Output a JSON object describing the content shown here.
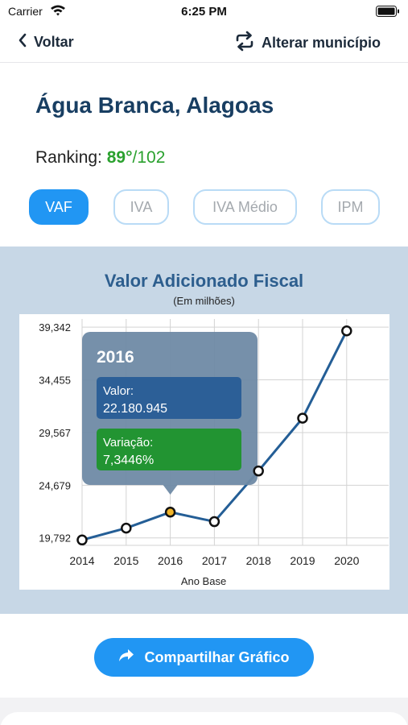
{
  "status_bar": {
    "carrier": "Carrier",
    "time": "6:25 PM"
  },
  "nav": {
    "back_label": "Voltar",
    "change_label": "Alterar município"
  },
  "city": {
    "name": "Água Branca, Alagoas",
    "ranking_label": "Ranking:",
    "ranking_position": "89°",
    "ranking_total": "/102"
  },
  "tabs": [
    {
      "label": "VAF",
      "active": true
    },
    {
      "label": "IVA",
      "active": false
    },
    {
      "label": "IVA Médio",
      "active": false
    },
    {
      "label": "IPM",
      "active": false
    }
  ],
  "chart": {
    "title": "Valor Adicionado Fiscal",
    "subtitle": "(Em milhões)",
    "tooltip": {
      "year": "2016",
      "value_label": "Valor:",
      "value": "22.180.945",
      "variation_label": "Variação:",
      "variation": "7,3446%"
    }
  },
  "chart_data": {
    "type": "line",
    "x": [
      "2014",
      "2015",
      "2016",
      "2017",
      "2018",
      "2019",
      "2020"
    ],
    "series": [
      {
        "values": [
          19.6,
          20.7,
          22.18,
          21.3,
          26.0,
          30.9,
          39.0
        ]
      }
    ],
    "xlabel": "Ano Base",
    "ylabel": "",
    "y_ticks": [
      "19,792",
      "24,679",
      "29,567",
      "34,455",
      "39,342"
    ],
    "y_tick_values": [
      19.792,
      24.679,
      29.567,
      34.455,
      39.342
    ],
    "ylim": [
      19.1,
      40.1
    ],
    "highlighted_index": 2,
    "grid": true,
    "colors": {
      "line": "#245e96",
      "highlight": "#f0b429",
      "tooltip_bg": "#6f8aa5",
      "value_box": "#2c5f97",
      "variation_box": "#229432"
    }
  },
  "share": {
    "label": "Compartilhar Gráfico"
  }
}
